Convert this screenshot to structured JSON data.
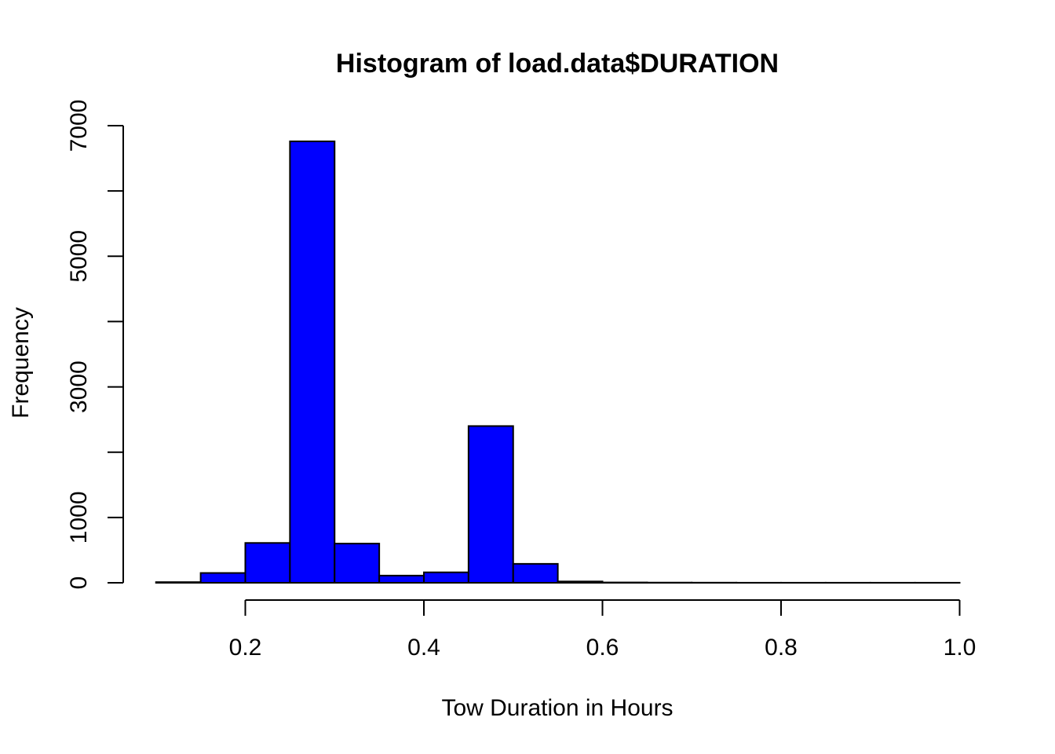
{
  "chart_data": {
    "type": "bar",
    "title": "Histogram of load.data$DURATION",
    "xlabel": "Tow Duration in Hours",
    "ylabel": "Frequency",
    "bar_color": "#0000ff",
    "bin_width": 0.05,
    "bins": [
      {
        "x0": 0.1,
        "x1": 0.15,
        "count": 10
      },
      {
        "x0": 0.15,
        "x1": 0.2,
        "count": 150
      },
      {
        "x0": 0.2,
        "x1": 0.25,
        "count": 610
      },
      {
        "x0": 0.25,
        "x1": 0.3,
        "count": 6760
      },
      {
        "x0": 0.3,
        "x1": 0.35,
        "count": 600
      },
      {
        "x0": 0.35,
        "x1": 0.4,
        "count": 110
      },
      {
        "x0": 0.4,
        "x1": 0.45,
        "count": 160
      },
      {
        "x0": 0.45,
        "x1": 0.5,
        "count": 2400
      },
      {
        "x0": 0.5,
        "x1": 0.55,
        "count": 290
      },
      {
        "x0": 0.55,
        "x1": 0.6,
        "count": 20
      },
      {
        "x0": 0.6,
        "x1": 0.65,
        "count": 5
      },
      {
        "x0": 0.65,
        "x1": 0.7,
        "count": 3
      },
      {
        "x0": 0.7,
        "x1": 0.75,
        "count": 2
      },
      {
        "x0": 0.75,
        "x1": 0.8,
        "count": 1
      },
      {
        "x0": 0.8,
        "x1": 0.85,
        "count": 1
      },
      {
        "x0": 0.85,
        "x1": 0.9,
        "count": 1
      },
      {
        "x0": 0.9,
        "x1": 0.95,
        "count": 1
      },
      {
        "x0": 0.95,
        "x1": 1.0,
        "count": 1
      }
    ],
    "xlim": [
      0.1,
      1.0
    ],
    "ylim": [
      0,
      7000
    ],
    "x_ticks": [
      {
        "value": 0.2,
        "label": "0.2"
      },
      {
        "value": 0.4,
        "label": "0.4"
      },
      {
        "value": 0.6,
        "label": "0.6"
      },
      {
        "value": 0.8,
        "label": "0.8"
      },
      {
        "value": 1.0,
        "label": "1.0"
      }
    ],
    "y_ticks": [
      {
        "value": 0,
        "label": "0"
      },
      {
        "value": 1000,
        "label": "1000"
      },
      {
        "value": 2000,
        "label": ""
      },
      {
        "value": 3000,
        "label": "3000"
      },
      {
        "value": 4000,
        "label": ""
      },
      {
        "value": 5000,
        "label": "5000"
      },
      {
        "value": 6000,
        "label": ""
      },
      {
        "value": 7000,
        "label": "7000"
      }
    ],
    "grid": false,
    "legend": "none"
  }
}
